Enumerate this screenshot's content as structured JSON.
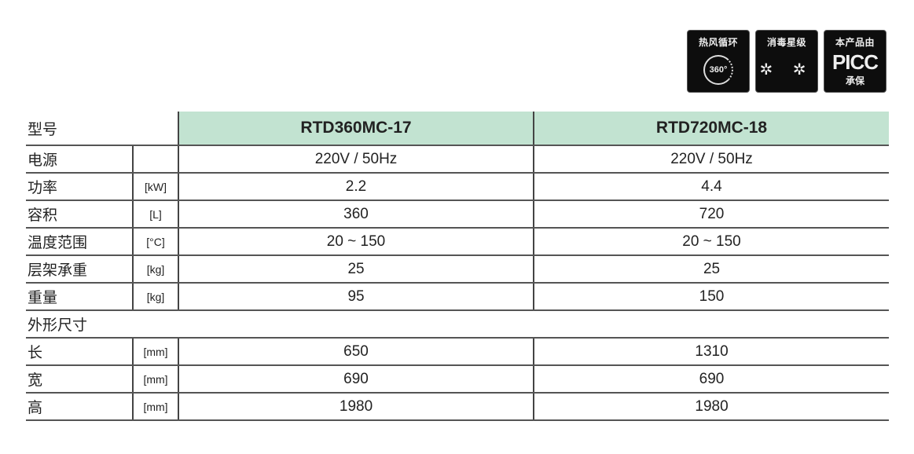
{
  "badges": [
    {
      "title": "热风循环",
      "icon": "360-circulation-icon",
      "content": "360°"
    },
    {
      "title": "消毒星级",
      "icon": "star-rating-icon",
      "content": "✲ ✲"
    },
    {
      "title": "本产品由",
      "icon": "picc-logo",
      "content": "PICC",
      "sub": "承保"
    }
  ],
  "table": {
    "header_label": "型号",
    "models": [
      "RTD360MC-17",
      "RTD720MC-18"
    ],
    "rows": [
      {
        "label": "电源",
        "unit": "",
        "values": [
          "220V / 50Hz",
          "220V / 50Hz"
        ]
      },
      {
        "label": "功率",
        "unit": "[kW]",
        "values": [
          "2.2",
          "4.4"
        ]
      },
      {
        "label": "容积",
        "unit": "[L]",
        "values": [
          "360",
          "720"
        ]
      },
      {
        "label": "温度范围",
        "unit": "[°C]",
        "values": [
          "20 ~ 150",
          "20 ~ 150"
        ]
      },
      {
        "label": "层架承重",
        "unit": "[kg]",
        "values": [
          "25",
          "25"
        ]
      },
      {
        "label": "重量",
        "unit": "[kg]",
        "values": [
          "95",
          "150"
        ]
      }
    ],
    "section_label": "外形尺寸",
    "dim_rows": [
      {
        "label": "长",
        "unit": "[mm]",
        "values": [
          "650",
          "1310"
        ]
      },
      {
        "label": "宽",
        "unit": "[mm]",
        "values": [
          "690",
          "690"
        ]
      },
      {
        "label": "高",
        "unit": "[mm]",
        "values": [
          "1980",
          "1980"
        ]
      }
    ]
  }
}
